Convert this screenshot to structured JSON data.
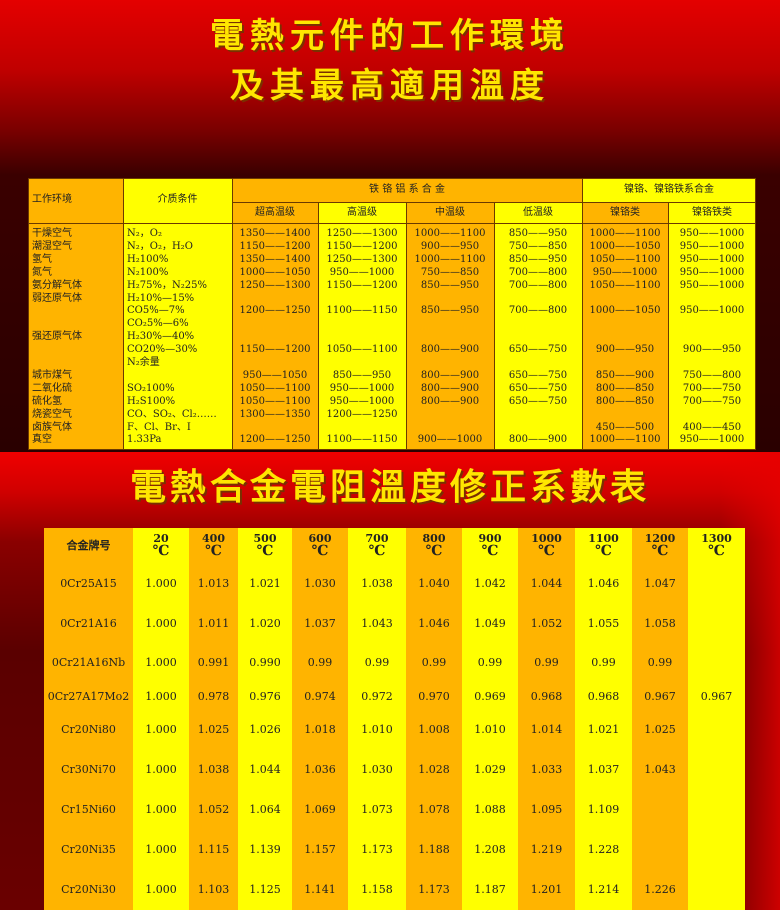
{
  "titles": {
    "line1": "電熱元件的工作環境",
    "line2": "及其最高適用溫度",
    "line3": "電熱合金電阻溫度修正系數表"
  },
  "table1": {
    "col_env": "工作环境",
    "col_medium": "介质条件",
    "group_fecral": "铁 铬 铝 系 合 金",
    "group_nicr": "镍铬、镍铬铁系合金",
    "sub_headers": [
      "超高温级",
      "高温级",
      "中温级",
      "低温级",
      "镍铬类",
      "镍铬铁类"
    ],
    "lines": [
      [
        "干燥空气",
        "N₂，O₂",
        "1350——1400",
        "1250——1300",
        "1000——1100",
        "850——950",
        "1000——1100",
        "950——1000"
      ],
      [
        "潮湿空气",
        "N₂，O₂，H₂O",
        "1150——1200",
        "1150——1200",
        "900——950",
        "750——850",
        "1000——1050",
        "950——1000"
      ],
      [
        "氢气",
        "H₂100%",
        "1350——1400",
        "1250——1300",
        "1000——1100",
        "850——950",
        "1050——1100",
        "950——1000"
      ],
      [
        "氮气",
        "N₂100%",
        "1000——1050",
        "950——1000",
        "750——850",
        "700——800",
        "950——1000",
        "950——1000"
      ],
      [
        "氨分解气体",
        "H₂75%，N₂25%",
        "1250——1300",
        "1150——1200",
        "850——950",
        "700——800",
        "1050——1100",
        "950——1000"
      ],
      [
        "弱还原气体",
        "H₂10%—15%",
        "",
        "",
        "",
        "",
        "",
        ""
      ],
      [
        "",
        "CO5%—7%",
        "1200——1250",
        "1100——1150",
        "850——950",
        "700——800",
        "1000——1050",
        "950——1000"
      ],
      [
        "",
        "CO₂5%—6%",
        "",
        "",
        "",
        "",
        "",
        ""
      ],
      [
        "强还原气体",
        "H₂30%—40%",
        "",
        "",
        "",
        "",
        "",
        ""
      ],
      [
        "",
        "CO20%—30%",
        "1150——1200",
        "1050——1100",
        "800——900",
        "650——750",
        "900——950",
        "900——950"
      ],
      [
        "",
        "N₂余量",
        "",
        "",
        "",
        "",
        "",
        ""
      ],
      [
        "城市煤气",
        "",
        "950——1050",
        "850——950",
        "800——900",
        "650——750",
        "850——900",
        "750——800"
      ],
      [
        "二氧化硫",
        "SO₂100%",
        "1050——1100",
        "950——1000",
        "800——900",
        "650——750",
        "800——850",
        "700——750"
      ],
      [
        "硫化氢",
        "H₂S100%",
        "1050——1100",
        "950——1000",
        "800——900",
        "650——750",
        "800——850",
        "700——750"
      ],
      [
        "烧瓷空气",
        "CO、SO₂、Cl₂……",
        "1300——1350",
        "1200——1250",
        "",
        "",
        "",
        ""
      ],
      [
        "卤族气体",
        "F、Cl、Br、I",
        "",
        "",
        "",
        "",
        "450——500",
        "400——450"
      ],
      [
        "真空",
        "1.33Pa",
        "1200——1250",
        "1100——1150",
        "900——1000",
        "800——900",
        "1000——1100",
        "950——1000"
      ]
    ]
  },
  "table2": {
    "header_label": "合金牌号",
    "temps": [
      "20",
      "400",
      "500",
      "600",
      "700",
      "800",
      "900",
      "1000",
      "1100",
      "1200",
      "1300"
    ],
    "unit": "℃",
    "rows": [
      [
        "0Cr25A15",
        "1.000",
        "1.013",
        "1.021",
        "1.030",
        "1.038",
        "1.040",
        "1.042",
        "1.044",
        "1.046",
        "1.047",
        ""
      ],
      [
        "0Cr21A16",
        "1.000",
        "1.011",
        "1.020",
        "1.037",
        "1.043",
        "1.046",
        "1.049",
        "1.052",
        "1.055",
        "1.058",
        ""
      ],
      [
        "0Cr21A16Nb",
        "1.000",
        "0.991",
        "0.990",
        "0.99",
        "0.99",
        "0.99",
        "0.99",
        "0.99",
        "0.99",
        "0.99",
        ""
      ],
      [
        "0Cr27A17Mo2",
        "1.000",
        "0.978",
        "0.976",
        "0.974",
        "0.972",
        "0.970",
        "0.969",
        "0.968",
        "0.968",
        "0.967",
        "0.967"
      ],
      [
        "Cr20Ni80",
        "1.000",
        "1.025",
        "1.026",
        "1.018",
        "1.010",
        "1.008",
        "1.010",
        "1.014",
        "1.021",
        "1.025",
        ""
      ],
      [
        "Cr30Ni70",
        "1.000",
        "1.038",
        "1.044",
        "1.036",
        "1.030",
        "1.028",
        "1.029",
        "1.033",
        "1.037",
        "1.043",
        ""
      ],
      [
        "Cr15Ni60",
        "1.000",
        "1.052",
        "1.064",
        "1.069",
        "1.073",
        "1.078",
        "1.088",
        "1.095",
        "1.109",
        "",
        ""
      ],
      [
        "Cr20Ni35",
        "1.000",
        "1.115",
        "1.139",
        "1.157",
        "1.173",
        "1.188",
        "1.208",
        "1.219",
        "1.228",
        "",
        ""
      ],
      [
        "Cr20Ni30",
        "1.000",
        "1.103",
        "1.125",
        "1.141",
        "1.158",
        "1.173",
        "1.187",
        "1.201",
        "1.214",
        "1.226",
        ""
      ]
    ]
  }
}
